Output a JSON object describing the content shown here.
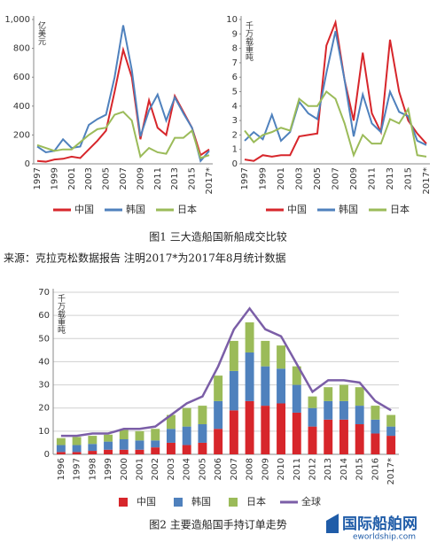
{
  "chart_data": [
    {
      "type": "line",
      "y_label": "亿美元",
      "categories": [
        "1997",
        null,
        "1999",
        null,
        "2001",
        null,
        "2003",
        null,
        "2005",
        null,
        "2007",
        null,
        "2009",
        null,
        "2011",
        null,
        "2013",
        null,
        "2015",
        null,
        "2017*"
      ],
      "series": [
        {
          "name": "中国",
          "color": "#d7262b",
          "values": [
            20,
            15,
            30,
            35,
            50,
            40,
            100,
            160,
            230,
            500,
            790,
            600,
            170,
            440,
            250,
            200,
            470,
            360,
            250,
            60,
            100
          ]
        },
        {
          "name": "韩国",
          "color": "#4f81bd",
          "values": [
            120,
            80,
            90,
            170,
            110,
            120,
            270,
            310,
            340,
            600,
            960,
            650,
            190,
            370,
            480,
            300,
            460,
            350,
            250,
            20,
            90
          ]
        },
        {
          "name": "日本",
          "color": "#9bbb59",
          "values": [
            130,
            110,
            90,
            100,
            100,
            150,
            200,
            240,
            250,
            340,
            360,
            300,
            50,
            110,
            80,
            70,
            180,
            180,
            230,
            40,
            60
          ]
        }
      ],
      "ylim": [
        0,
        1000
      ],
      "yticks": [
        0,
        200,
        400,
        600,
        800,
        {
          "value": 1000,
          "label": "1,000"
        }
      ],
      "grid": false
    },
    {
      "type": "line",
      "y_label": "千万载重吨",
      "categories": [
        "1997",
        null,
        "1999",
        null,
        "2001",
        null,
        "2003",
        null,
        "2005",
        null,
        "2007",
        null,
        "2009",
        null,
        "2011",
        null,
        "2013",
        null,
        "2015",
        null,
        "2017*"
      ],
      "series": [
        {
          "name": "中国",
          "color": "#d7262b",
          "values": [
            0.3,
            0.2,
            0.6,
            0.5,
            0.6,
            0.6,
            1.9,
            2.0,
            2.1,
            8.2,
            9.8,
            5.8,
            3.0,
            7.7,
            3.5,
            2.2,
            8.6,
            5.0,
            3.0,
            2.1,
            1.4
          ]
        },
        {
          "name": "韩国",
          "color": "#4f81bd",
          "values": [
            1.6,
            2.2,
            1.7,
            3.4,
            1.6,
            2.2,
            4.3,
            3.5,
            3.1,
            6.3,
            9.2,
            5.8,
            1.9,
            4.8,
            2.8,
            2.2,
            5.0,
            3.6,
            3.3,
            1.6,
            1.3
          ]
        },
        {
          "name": "日本",
          "color": "#9bbb59",
          "values": [
            2.3,
            1.5,
            2.0,
            2.2,
            2.5,
            2.3,
            4.5,
            4.0,
            4.0,
            5.0,
            4.5,
            2.8,
            0.6,
            2.0,
            1.4,
            1.4,
            3.1,
            2.8,
            3.8,
            0.6,
            0.5
          ]
        }
      ],
      "ylim": [
        0,
        10
      ],
      "yticks": [
        0,
        1,
        2,
        3,
        4,
        5,
        6,
        7,
        8,
        9,
        10
      ],
      "grid": false
    },
    {
      "type": "bar",
      "stacked": true,
      "y_label": "千万载重吨",
      "categories": [
        "1996",
        "1997",
        "1998",
        "1999",
        "2000",
        "2001",
        "2002",
        "2003",
        "2004",
        "2005",
        "2006",
        "2007",
        "2008",
        "2009",
        "2010",
        "2011",
        "2012",
        "2013",
        "2014",
        "2015",
        "2016",
        "2017*"
      ],
      "series": [
        {
          "name": "中国",
          "color": "#d7262b",
          "values": [
            1,
            1,
            1.5,
            2,
            2,
            2,
            3,
            5,
            4,
            5,
            11,
            19,
            23,
            21,
            22,
            18,
            12,
            15,
            15,
            13,
            9,
            8
          ]
        },
        {
          "name": "韩国",
          "color": "#4f81bd",
          "values": [
            3,
            3,
            3,
            3.5,
            4.5,
            4,
            3,
            6,
            8,
            8,
            12,
            17,
            21,
            17,
            15,
            12,
            8,
            8,
            8,
            8,
            6,
            4
          ]
        },
        {
          "name": "日本",
          "color": "#9bbb59",
          "values": [
            3,
            3.5,
            3.5,
            3,
            4,
            4,
            5,
            6,
            8,
            8,
            11,
            13,
            13,
            11,
            10,
            8,
            5,
            6,
            7,
            8,
            6,
            5
          ]
        },
        {
          "name": "全球",
          "color": "#7b5ea7",
          "type": "line",
          "values": [
            8,
            8,
            9,
            9,
            11,
            11,
            12,
            17,
            22,
            25,
            38,
            54,
            63,
            54,
            51,
            39,
            27,
            32,
            32,
            31,
            23,
            19
          ]
        }
      ],
      "ylim": [
        0,
        70
      ],
      "yticks": [
        0,
        10,
        20,
        30,
        40,
        50,
        60,
        70
      ],
      "grid": true
    }
  ],
  "captions": [
    "图1  三大造船国新船成交比较",
    "图2  主要造船国手持订单走势"
  ],
  "source": "来源：克拉克松数据报告    注明2017*为2017年8月统计数据",
  "watermark": {
    "title": "国际船舶网",
    "url": "eworldship.com"
  }
}
